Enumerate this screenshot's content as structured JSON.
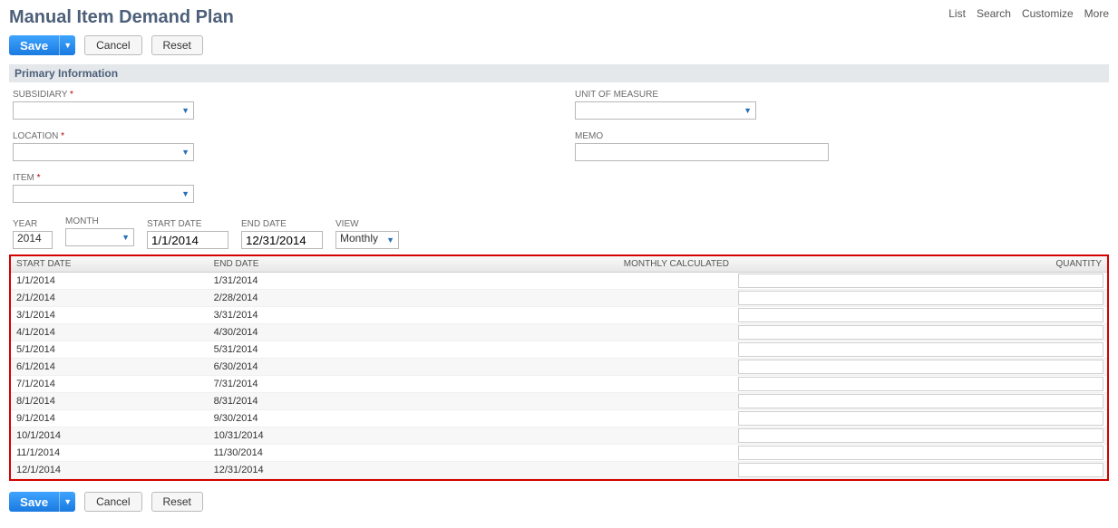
{
  "page": {
    "title": "Manual Item Demand Plan"
  },
  "top_links": [
    "List",
    "Search",
    "Customize",
    "More"
  ],
  "buttons": {
    "save": "Save",
    "cancel": "Cancel",
    "reset": "Reset"
  },
  "section": {
    "primary": "Primary Information"
  },
  "fields": {
    "subsidiary": {
      "label": "Subsidiary",
      "value": ""
    },
    "location": {
      "label": "Location",
      "value": ""
    },
    "item": {
      "label": "Item",
      "value": ""
    },
    "unit_of_measure": {
      "label": "Unit of Measure",
      "value": ""
    },
    "memo": {
      "label": "Memo",
      "value": ""
    }
  },
  "filters": {
    "year": {
      "label": "Year",
      "value": "2014"
    },
    "month": {
      "label": "Month",
      "value": ""
    },
    "start_date": {
      "label": "Start Date",
      "value": "1/1/2014"
    },
    "end_date": {
      "label": "End Date",
      "value": "12/31/2014"
    },
    "view": {
      "label": "View",
      "value": "Monthly"
    }
  },
  "grid": {
    "columns": {
      "start_date": "Start Date",
      "end_date": "End Date",
      "monthly_calculated": "Monthly Calculated",
      "quantity": "Quantity"
    },
    "rows": [
      {
        "start": "1/1/2014",
        "end": "1/31/2014",
        "calc": "",
        "qty": ""
      },
      {
        "start": "2/1/2014",
        "end": "2/28/2014",
        "calc": "",
        "qty": ""
      },
      {
        "start": "3/1/2014",
        "end": "3/31/2014",
        "calc": "",
        "qty": ""
      },
      {
        "start": "4/1/2014",
        "end": "4/30/2014",
        "calc": "",
        "qty": ""
      },
      {
        "start": "5/1/2014",
        "end": "5/31/2014",
        "calc": "",
        "qty": ""
      },
      {
        "start": "6/1/2014",
        "end": "6/30/2014",
        "calc": "",
        "qty": ""
      },
      {
        "start": "7/1/2014",
        "end": "7/31/2014",
        "calc": "",
        "qty": ""
      },
      {
        "start": "8/1/2014",
        "end": "8/31/2014",
        "calc": "",
        "qty": ""
      },
      {
        "start": "9/1/2014",
        "end": "9/30/2014",
        "calc": "",
        "qty": ""
      },
      {
        "start": "10/1/2014",
        "end": "10/31/2014",
        "calc": "",
        "qty": ""
      },
      {
        "start": "11/1/2014",
        "end": "11/30/2014",
        "calc": "",
        "qty": ""
      },
      {
        "start": "12/1/2014",
        "end": "12/31/2014",
        "calc": "",
        "qty": ""
      }
    ]
  }
}
